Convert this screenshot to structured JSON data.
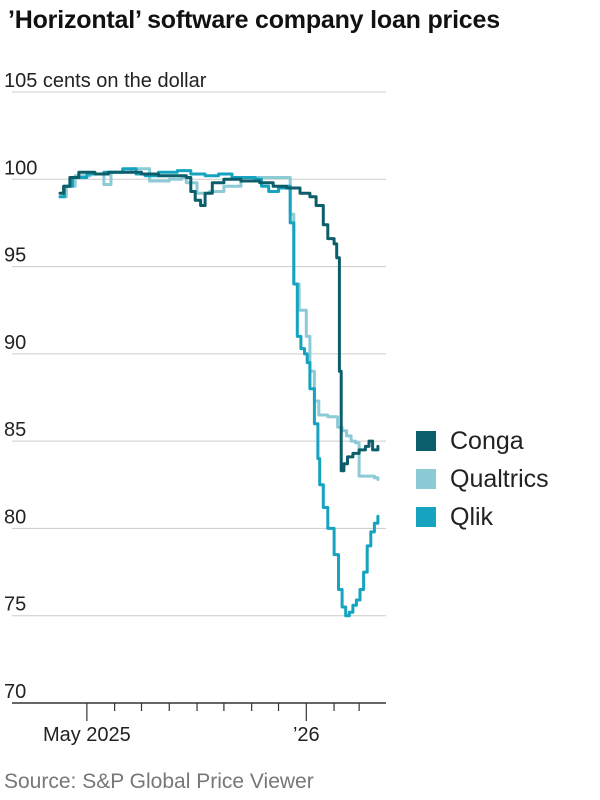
{
  "title": "’Horizontal’ software company loan prices",
  "source": "Source: S&P Global Price Viewer",
  "colors": {
    "Conga": "#0c5e6a",
    "Qualtrics": "#8ccad6",
    "Qlik": "#15a3c0",
    "grid": "#cccccc",
    "axis": "#333333"
  },
  "chart_data": {
    "type": "line",
    "ylabel": "cents on the dollar",
    "ylim": [
      70,
      105
    ],
    "yticks": [
      105,
      100,
      95,
      90,
      85,
      80,
      75,
      70
    ],
    "ytick_labels": [
      "105 cents on the dollar",
      "100",
      "95",
      "90",
      "85",
      "80",
      "75",
      "70"
    ],
    "xlim": [
      "2025-04-01",
      "2026-03-31"
    ],
    "xtick_labels": [
      {
        "date": "2025-05-01",
        "label": "May 2025"
      },
      {
        "date": "2026-01-01",
        "label": "’26"
      }
    ],
    "month_ticks": [
      "2025-05-01",
      "2025-06-01",
      "2025-07-01",
      "2025-08-01",
      "2025-09-01",
      "2025-10-01",
      "2025-11-01",
      "2025-12-01",
      "2026-01-01",
      "2026-02-01",
      "2026-03-01"
    ],
    "legend_position": "right",
    "series": [
      {
        "name": "Conga",
        "points": [
          [
            "2025-04-01",
            99.2
          ],
          [
            "2025-04-05",
            99.6
          ],
          [
            "2025-04-12",
            100.1
          ],
          [
            "2025-04-22",
            100.4
          ],
          [
            "2025-05-10",
            100.3
          ],
          [
            "2025-05-25",
            100.4
          ],
          [
            "2025-06-15",
            100.4
          ],
          [
            "2025-07-01",
            100.3
          ],
          [
            "2025-07-20",
            100.2
          ],
          [
            "2025-08-10",
            100.2
          ],
          [
            "2025-08-20",
            100.1
          ],
          [
            "2025-08-25",
            99.3
          ],
          [
            "2025-08-30",
            98.8
          ],
          [
            "2025-09-05",
            98.5
          ],
          [
            "2025-09-10",
            99.2
          ],
          [
            "2025-09-18",
            99.8
          ],
          [
            "2025-10-01",
            100.0
          ],
          [
            "2025-10-20",
            99.9
          ],
          [
            "2025-11-10",
            99.8
          ],
          [
            "2025-11-25",
            99.6
          ],
          [
            "2025-12-10",
            99.5
          ],
          [
            "2025-12-25",
            99.2
          ],
          [
            "2026-01-05",
            99.0
          ],
          [
            "2026-01-12",
            98.5
          ],
          [
            "2026-01-20",
            97.4
          ],
          [
            "2026-01-25",
            96.6
          ],
          [
            "2026-02-01",
            96.3
          ],
          [
            "2026-02-04",
            95.5
          ],
          [
            "2026-02-07",
            89.0
          ],
          [
            "2026-02-09",
            83.3
          ],
          [
            "2026-02-12",
            83.7
          ],
          [
            "2026-02-16",
            84.1
          ],
          [
            "2026-02-22",
            84.3
          ],
          [
            "2026-03-01",
            84.5
          ],
          [
            "2026-03-08",
            84.7
          ],
          [
            "2026-03-12",
            85.0
          ],
          [
            "2026-03-16",
            84.5
          ],
          [
            "2026-03-22",
            84.7
          ]
        ]
      },
      {
        "name": "Qualtrics",
        "points": [
          [
            "2025-04-01",
            99.0
          ],
          [
            "2025-04-08",
            99.6
          ],
          [
            "2025-04-18",
            100.2
          ],
          [
            "2025-05-05",
            100.3
          ],
          [
            "2025-05-20",
            99.7
          ],
          [
            "2025-05-28",
            100.4
          ],
          [
            "2025-06-20",
            100.6
          ],
          [
            "2025-07-10",
            99.9
          ],
          [
            "2025-08-01",
            100.0
          ],
          [
            "2025-08-15",
            100.1
          ],
          [
            "2025-08-20",
            99.8
          ],
          [
            "2025-09-01",
            99.2
          ],
          [
            "2025-09-15",
            99.3
          ],
          [
            "2025-10-01",
            99.6
          ],
          [
            "2025-10-20",
            99.9
          ],
          [
            "2025-11-05",
            100.1
          ],
          [
            "2025-11-20",
            100.1
          ],
          [
            "2025-12-01",
            100.1
          ],
          [
            "2025-12-10",
            100.1
          ],
          [
            "2025-12-14",
            98.0
          ],
          [
            "2025-12-18",
            94.0
          ],
          [
            "2025-12-24",
            92.5
          ],
          [
            "2026-01-01",
            91.0
          ],
          [
            "2026-01-05",
            89.0
          ],
          [
            "2026-01-10",
            87.3
          ],
          [
            "2026-01-15",
            86.5
          ],
          [
            "2026-01-25",
            86.4
          ],
          [
            "2026-02-05",
            85.8
          ],
          [
            "2026-02-10",
            85.6
          ],
          [
            "2026-02-15",
            85.3
          ],
          [
            "2026-02-20",
            85.0
          ],
          [
            "2026-02-25",
            84.9
          ],
          [
            "2026-03-01",
            83.0
          ],
          [
            "2026-03-10",
            83.0
          ],
          [
            "2026-03-18",
            82.9
          ],
          [
            "2026-03-22",
            82.8
          ]
        ]
      },
      {
        "name": "Qlik",
        "points": [
          [
            "2025-04-01",
            99.0
          ],
          [
            "2025-04-06",
            99.6
          ],
          [
            "2025-04-15",
            100.1
          ],
          [
            "2025-05-01",
            100.3
          ],
          [
            "2025-05-20",
            100.4
          ],
          [
            "2025-06-10",
            100.6
          ],
          [
            "2025-06-25",
            100.3
          ],
          [
            "2025-07-05",
            100.2
          ],
          [
            "2025-07-20",
            100.4
          ],
          [
            "2025-08-10",
            100.5
          ],
          [
            "2025-08-25",
            100.3
          ],
          [
            "2025-09-10",
            100.2
          ],
          [
            "2025-09-25",
            100.3
          ],
          [
            "2025-10-10",
            100.1
          ],
          [
            "2025-10-25",
            100.1
          ],
          [
            "2025-11-05",
            100.0
          ],
          [
            "2025-11-12",
            99.6
          ],
          [
            "2025-11-20",
            99.3
          ],
          [
            "2025-12-01",
            99.5
          ],
          [
            "2025-12-10",
            99.6
          ],
          [
            "2025-12-14",
            97.5
          ],
          [
            "2025-12-18",
            94.0
          ],
          [
            "2025-12-22",
            91.0
          ],
          [
            "2025-12-26",
            90.3
          ],
          [
            "2025-12-30",
            90.0
          ],
          [
            "2026-01-02",
            89.5
          ],
          [
            "2026-01-05",
            88.0
          ],
          [
            "2026-01-10",
            86.0
          ],
          [
            "2026-01-14",
            84.0
          ],
          [
            "2026-01-16",
            82.5
          ],
          [
            "2026-01-20",
            81.2
          ],
          [
            "2026-01-25",
            80.0
          ],
          [
            "2026-02-01",
            78.5
          ],
          [
            "2026-02-06",
            76.5
          ],
          [
            "2026-02-10",
            75.5
          ],
          [
            "2026-02-14",
            75.0
          ],
          [
            "2026-02-18",
            75.2
          ],
          [
            "2026-02-22",
            75.6
          ],
          [
            "2026-02-26",
            75.9
          ],
          [
            "2026-03-02",
            76.5
          ],
          [
            "2026-03-06",
            77.5
          ],
          [
            "2026-03-10",
            79.0
          ],
          [
            "2026-03-14",
            79.8
          ],
          [
            "2026-03-18",
            80.3
          ],
          [
            "2026-03-22",
            80.7
          ]
        ]
      }
    ]
  }
}
